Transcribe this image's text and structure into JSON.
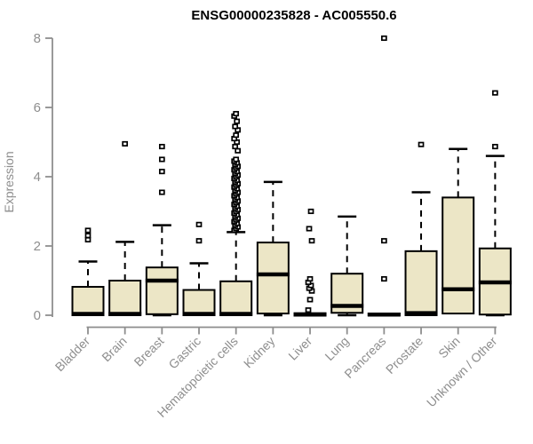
{
  "chart_data": {
    "type": "boxplot",
    "title": "ENSG00000235828 - AC005550.6",
    "ylabel": "Expression",
    "xlabel": "",
    "ylim": [
      0,
      8
    ],
    "yticks": [
      0,
      2,
      4,
      6,
      8
    ],
    "grid": false,
    "legend": false,
    "colors": {
      "box_fill": "#ece6c6",
      "box_stroke": "#000000",
      "median": "#000000",
      "whisker": "#000000",
      "outlier_fill": "#ffffff",
      "outlier_stroke": "#000000",
      "axis": "#8e8e8e",
      "tick_label": "#8e8e8e",
      "title": "#000000",
      "background": "#ffffff"
    },
    "categories": [
      "Bladder",
      "Brain",
      "Breast",
      "Gastric",
      "Hematopoietic cells",
      "Kidney",
      "Liver",
      "Lung",
      "Pancreas",
      "Prostate",
      "Skin",
      "Unknown / Other"
    ],
    "boxes": [
      {
        "label": "Bladder",
        "q1": 0,
        "median": 0.04,
        "q3": 0.82,
        "whisker_low": 0,
        "whisker_high": 1.55,
        "outliers": [
          2.18,
          2.3,
          2.45
        ]
      },
      {
        "label": "Brain",
        "q1": 0,
        "median": 0.04,
        "q3": 1.0,
        "whisker_low": 0,
        "whisker_high": 2.12,
        "outliers": [
          4.95
        ]
      },
      {
        "label": "Breast",
        "q1": 0.03,
        "median": 1.0,
        "q3": 1.38,
        "whisker_low": 0,
        "whisker_high": 2.6,
        "outliers": [
          3.55,
          4.15,
          4.5,
          4.87
        ]
      },
      {
        "label": "Gastric",
        "q1": 0,
        "median": 0.04,
        "q3": 0.73,
        "whisker_low": 0,
        "whisker_high": 1.5,
        "outliers": [
          2.15,
          2.62
        ]
      },
      {
        "label": "Hematopoietic cells",
        "q1": 0,
        "median": 0.04,
        "q3": 0.98,
        "whisker_low": 0,
        "whisker_high": 2.4,
        "outliers": [
          2.45,
          2.5,
          2.55,
          2.6,
          2.65,
          2.7,
          2.75,
          2.8,
          2.85,
          2.9,
          2.95,
          3.0,
          3.05,
          3.1,
          3.15,
          3.2,
          3.25,
          3.3,
          3.35,
          3.4,
          3.45,
          3.5,
          3.55,
          3.6,
          3.65,
          3.7,
          3.75,
          3.8,
          3.85,
          3.9,
          3.95,
          4.0,
          4.05,
          4.1,
          4.15,
          4.2,
          4.25,
          4.3,
          4.35,
          4.4,
          4.45,
          4.5,
          4.75,
          4.87,
          5.0,
          5.1,
          5.2,
          5.35,
          5.45,
          5.6,
          5.75,
          5.82
        ]
      },
      {
        "label": "Kidney",
        "q1": 0.05,
        "median": 1.18,
        "q3": 2.1,
        "whisker_low": 0,
        "whisker_high": 3.85,
        "outliers": []
      },
      {
        "label": "Liver",
        "q1": 0,
        "median": 0.02,
        "q3": 0.06,
        "whisker_low": 0,
        "whisker_high": 0.06,
        "outliers": [
          0.15,
          0.45,
          0.7,
          0.78,
          0.86,
          0.95,
          1.05,
          2.15,
          2.5,
          3.0
        ]
      },
      {
        "label": "Lung",
        "q1": 0.07,
        "median": 0.27,
        "q3": 1.2,
        "whisker_low": 0,
        "whisker_high": 2.85,
        "outliers": []
      },
      {
        "label": "Pancreas",
        "q1": 0,
        "median": 0.02,
        "q3": 0.05,
        "whisker_low": 0,
        "whisker_high": 0.05,
        "outliers": [
          1.05,
          2.15,
          8.0
        ]
      },
      {
        "label": "Prostate",
        "q1": 0,
        "median": 0.06,
        "q3": 1.85,
        "whisker_low": 0,
        "whisker_high": 3.55,
        "outliers": [
          4.93
        ]
      },
      {
        "label": "Skin",
        "q1": 0.05,
        "median": 0.75,
        "q3": 3.4,
        "whisker_low": 0.05,
        "whisker_high": 4.8,
        "outliers": []
      },
      {
        "label": "Unknown / Other",
        "q1": 0.02,
        "median": 0.95,
        "q3": 1.93,
        "whisker_low": 0,
        "whisker_high": 4.6,
        "outliers": [
          4.87,
          6.42
        ]
      }
    ]
  }
}
